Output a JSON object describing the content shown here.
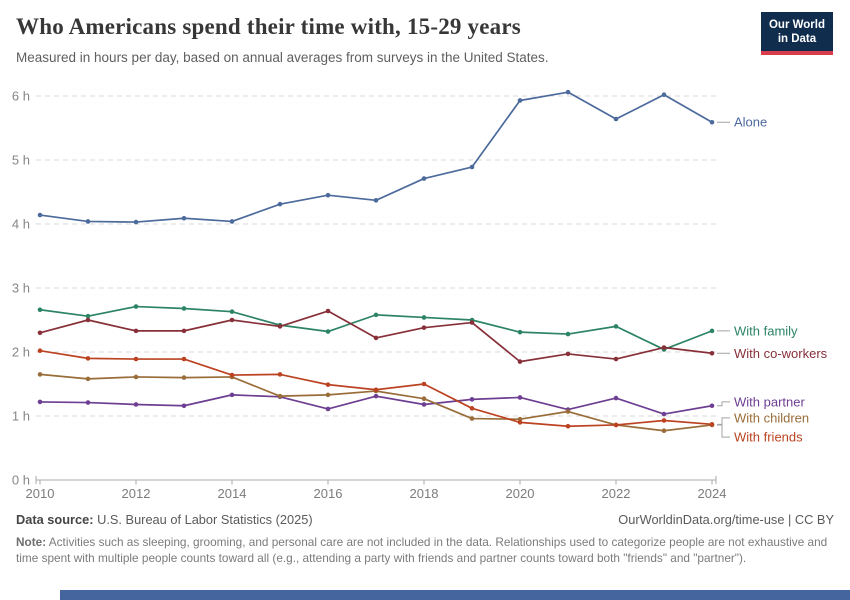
{
  "header": {
    "title": "Who Americans spend their time with, 15-29 years",
    "subtitle": "Measured in hours per day, based on annual averages from surveys in the United States.",
    "logo": {
      "line1": "Our World",
      "line2": "in Data"
    }
  },
  "chart_data": {
    "type": "line",
    "x": [
      2010,
      2011,
      2012,
      2013,
      2014,
      2015,
      2016,
      2017,
      2018,
      2019,
      2020,
      2021,
      2022,
      2023,
      2024
    ],
    "series": [
      {
        "name": "Alone",
        "color": "#4C6A9C",
        "label_at": 5.59,
        "values": [
          4.14,
          4.04,
          4.03,
          4.09,
          4.04,
          4.31,
          4.45,
          4.37,
          4.71,
          4.89,
          5.93,
          6.06,
          5.64,
          6.02,
          5.59
        ]
      },
      {
        "name": "With family",
        "color": "#2C8465",
        "label_at": 2.33,
        "values": [
          2.66,
          2.56,
          2.71,
          2.68,
          2.63,
          2.42,
          2.32,
          2.58,
          2.54,
          2.5,
          2.31,
          2.28,
          2.4,
          2.04,
          2.33
        ]
      },
      {
        "name": "With co-workers",
        "color": "#883039",
        "label_at": 1.98,
        "values": [
          2.3,
          2.5,
          2.33,
          2.33,
          2.5,
          2.4,
          2.64,
          2.22,
          2.38,
          2.46,
          1.85,
          1.97,
          1.89,
          2.07,
          1.98
        ]
      },
      {
        "name": "With partner",
        "color": "#6D3E91",
        "label_at": 1.22,
        "values": [
          1.22,
          1.21,
          1.18,
          1.16,
          1.33,
          1.3,
          1.11,
          1.31,
          1.18,
          1.26,
          1.29,
          1.1,
          1.28,
          1.03,
          1.16
        ]
      },
      {
        "name": "With children",
        "color": "#996D39",
        "label_at": 0.97,
        "values": [
          1.65,
          1.58,
          1.61,
          1.6,
          1.61,
          1.31,
          1.33,
          1.39,
          1.27,
          0.96,
          0.95,
          1.07,
          0.86,
          0.77,
          0.86
        ]
      },
      {
        "name": "With friends",
        "color": "#BC4322",
        "label_at": 0.67,
        "values": [
          2.02,
          1.9,
          1.89,
          1.89,
          1.64,
          1.65,
          1.49,
          1.41,
          1.5,
          1.12,
          0.9,
          0.84,
          0.86,
          0.93,
          0.87
        ]
      }
    ],
    "title": "Who Americans spend their time with, 15-29 years",
    "xlabel": "",
    "ylabel": "hours per day",
    "yticks": [
      0,
      1,
      2,
      3,
      4,
      5,
      6
    ],
    "ytick_suffix": " h",
    "xticks": [
      2010,
      2012,
      2014,
      2016,
      2018,
      2020,
      2022,
      2024
    ],
    "ylim": [
      0,
      6.3
    ],
    "xlim": [
      2010,
      2024
    ],
    "grid": "horizontal-dashed",
    "legend_position": "right-end-labels"
  },
  "footer": {
    "source_label": "Data source:",
    "source_text": " U.S. Bureau of Labor Statistics (2025)",
    "attribution": "OurWorldinData.org/time-use | CC BY",
    "note_label": "Note:",
    "note_text": " Activities such as sleeping, grooming, and personal care are not included in the data. Relationships used to categorize people are not exhaustive and time spent with multiple people counts toward all (e.g., attending a party with friends and partner counts toward both \"friends\" and \"partner\")."
  }
}
